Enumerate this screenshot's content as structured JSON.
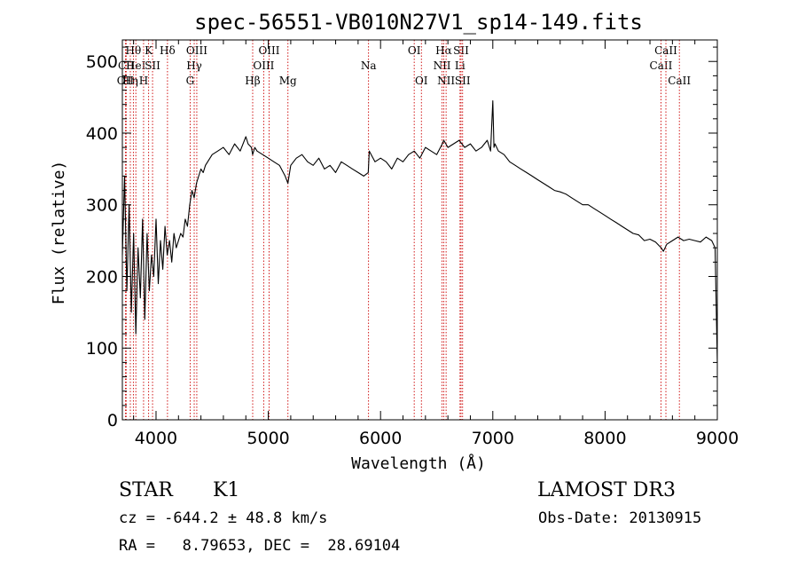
{
  "chart_data": {
    "type": "line",
    "title": "spec-56551-VB010N27V1_sp14-149.fits",
    "xlabel": "Wavelength (Å)",
    "ylabel": "Flux (relative)",
    "xlim": [
      3700,
      9000
    ],
    "ylim": [
      0,
      530
    ],
    "x_ticks": [
      4000,
      5000,
      6000,
      7000,
      8000,
      9000
    ],
    "y_ticks": [
      0,
      100,
      200,
      300,
      400,
      500
    ],
    "grid": false,
    "series": [
      {
        "name": "spectrum",
        "x": [
          3700,
          3720,
          3740,
          3760,
          3780,
          3800,
          3820,
          3840,
          3860,
          3880,
          3900,
          3920,
          3940,
          3960,
          3980,
          4000,
          4020,
          4040,
          4060,
          4080,
          4100,
          4120,
          4140,
          4160,
          4180,
          4200,
          4220,
          4240,
          4260,
          4280,
          4300,
          4320,
          4340,
          4360,
          4380,
          4400,
          4420,
          4440,
          4460,
          4480,
          4500,
          4550,
          4600,
          4650,
          4700,
          4750,
          4800,
          4820,
          4850,
          4860,
          4880,
          4900,
          4950,
          5000,
          5050,
          5100,
          5150,
          5175,
          5200,
          5250,
          5300,
          5350,
          5400,
          5450,
          5500,
          5550,
          5600,
          5650,
          5700,
          5750,
          5800,
          5850,
          5890,
          5900,
          5950,
          6000,
          6050,
          6100,
          6150,
          6200,
          6250,
          6300,
          6350,
          6400,
          6450,
          6500,
          6550,
          6563,
          6600,
          6650,
          6700,
          6750,
          6800,
          6850,
          6900,
          6950,
          6980,
          7000,
          7010,
          7020,
          7050,
          7100,
          7150,
          7200,
          7250,
          7300,
          7350,
          7400,
          7450,
          7500,
          7550,
          7600,
          7650,
          7700,
          7750,
          7800,
          7850,
          7900,
          7950,
          8000,
          8050,
          8100,
          8150,
          8200,
          8250,
          8300,
          8350,
          8400,
          8450,
          8500,
          8520,
          8550,
          8600,
          8650,
          8700,
          8750,
          8800,
          8850,
          8900,
          8950,
          8980,
          9000
        ],
        "y": [
          230,
          340,
          180,
          300,
          150,
          260,
          120,
          240,
          170,
          280,
          140,
          260,
          180,
          230,
          200,
          280,
          190,
          250,
          210,
          270,
          230,
          250,
          220,
          260,
          240,
          250,
          260,
          255,
          280,
          270,
          300,
          320,
          310,
          330,
          340,
          350,
          345,
          355,
          360,
          365,
          370,
          375,
          380,
          370,
          385,
          375,
          395,
          385,
          380,
          370,
          380,
          375,
          370,
          365,
          360,
          355,
          340,
          330,
          355,
          365,
          370,
          360,
          355,
          365,
          350,
          355,
          345,
          360,
          355,
          350,
          345,
          340,
          345,
          375,
          360,
          365,
          360,
          350,
          365,
          360,
          370,
          375,
          365,
          380,
          375,
          370,
          385,
          390,
          380,
          385,
          390,
          380,
          385,
          375,
          380,
          390,
          375,
          445,
          380,
          385,
          375,
          370,
          360,
          355,
          350,
          345,
          340,
          335,
          330,
          325,
          320,
          318,
          315,
          310,
          305,
          300,
          300,
          295,
          290,
          285,
          280,
          275,
          270,
          265,
          260,
          258,
          250,
          252,
          248,
          240,
          235,
          245,
          250,
          255,
          250,
          252,
          250,
          248,
          255,
          250,
          240,
          80
        ]
      }
    ],
    "line_markers": [
      {
        "wavelength": 3727,
        "label": "OII",
        "row": 2
      },
      {
        "wavelength": 3734,
        "label": "CII",
        "row": 1
      },
      {
        "wavelength": 3771,
        "label": "Hη",
        "row": 2
      },
      {
        "wavelength": 3798,
        "label": "Hθ",
        "row": 0
      },
      {
        "wavelength": 3820,
        "label": "HeI",
        "row": 1
      },
      {
        "wavelength": 3889,
        "label": "H",
        "row": 2
      },
      {
        "wavelength": 3934,
        "label": "K",
        "row": 0
      },
      {
        "wavelength": 3969,
        "label": "SII",
        "row": 1
      },
      {
        "wavelength": 4102,
        "label": "Hδ",
        "row": 0
      },
      {
        "wavelength": 4304,
        "label": "G",
        "row": 2
      },
      {
        "wavelength": 4340,
        "label": "Hγ",
        "row": 1
      },
      {
        "wavelength": 4363,
        "label": "OIII",
        "row": 0
      },
      {
        "wavelength": 4861,
        "label": "Hβ",
        "row": 2
      },
      {
        "wavelength": 4959,
        "label": "OIII",
        "row": 1
      },
      {
        "wavelength": 5007,
        "label": "OIII",
        "row": 0
      },
      {
        "wavelength": 5175,
        "label": "Mg",
        "row": 2
      },
      {
        "wavelength": 5893,
        "label": "Na",
        "row": 1
      },
      {
        "wavelength": 6300,
        "label": "OI",
        "row": 0
      },
      {
        "wavelength": 6364,
        "label": "OI",
        "row": 2
      },
      {
        "wavelength": 6548,
        "label": "NII",
        "row": 1
      },
      {
        "wavelength": 6563,
        "label": "Hα",
        "row": 0
      },
      {
        "wavelength": 6584,
        "label": "NII",
        "row": 2
      },
      {
        "wavelength": 6708,
        "label": "Li",
        "row": 1
      },
      {
        "wavelength": 6717,
        "label": "SII",
        "row": 0
      },
      {
        "wavelength": 6731,
        "label": "SII",
        "row": 2
      },
      {
        "wavelength": 8498,
        "label": "CaII",
        "row": 1
      },
      {
        "wavelength": 8542,
        "label": "CaII",
        "row": 0
      },
      {
        "wavelength": 8662,
        "label": "CaII",
        "row": 2
      }
    ],
    "colors": {
      "spectrum": "#000000",
      "marker": "#cc0000",
      "axis": "#000000"
    }
  },
  "info": {
    "object_class": "STAR",
    "subclass": "K1",
    "survey": "LAMOST DR3",
    "cz": "cz = -644.2 ± 48.8 km/s",
    "obs_date": "Obs-Date: 20130915",
    "coords": "RA =   8.79653, DEC =  28.69104"
  }
}
